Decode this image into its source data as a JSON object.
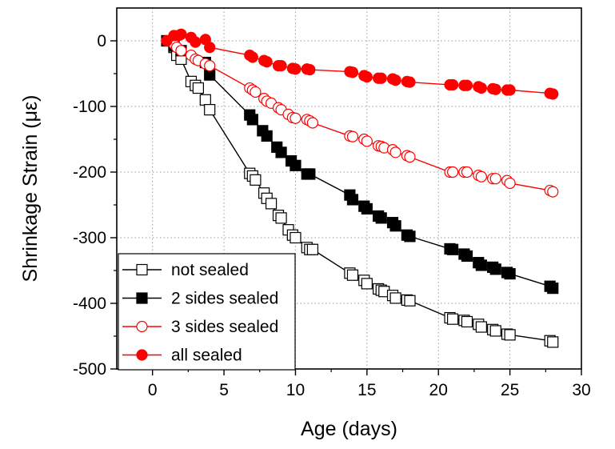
{
  "chart_data": {
    "type": "line",
    "title": "",
    "xlabel": "Age (days)",
    "ylabel": "Shrinkage Strain (με)",
    "xlim": [
      -2.5,
      30
    ],
    "ylim": [
      -500,
      50
    ],
    "xticks": [
      0,
      5,
      10,
      15,
      20,
      25,
      30
    ],
    "yticks": [
      0,
      -100,
      -200,
      -300,
      -400,
      -500
    ],
    "grid": true,
    "legend_position": "bottom-left",
    "series": [
      {
        "name": "not sealed",
        "color": "#000000",
        "marker": "square-open",
        "x": [
          1,
          1.5,
          1.7,
          2.0,
          2.7,
          3.0,
          3.2,
          3.7,
          4.0,
          6.8,
          7.0,
          7.2,
          7.8,
          8.0,
          8.3,
          8.8,
          9.0,
          9.5,
          9.8,
          10.0,
          10.8,
          11.0,
          11.2,
          13.8,
          14.0,
          14.8,
          15.0,
          15.8,
          16.0,
          16.2,
          16.8,
          17.0,
          17.8,
          18.0,
          20.8,
          21.0,
          21.8,
          22.0,
          22.8,
          23.0,
          23.8,
          24.0,
          24.8,
          25.0,
          27.8,
          28.0
        ],
        "y": [
          0,
          -10,
          -22,
          -28,
          -62,
          -68,
          -72,
          -90,
          -105,
          -202,
          -206,
          -212,
          -232,
          -240,
          -248,
          -266,
          -270,
          -288,
          -296,
          -300,
          -315,
          -318,
          -318,
          -354,
          -357,
          -365,
          -370,
          -378,
          -380,
          -382,
          -388,
          -392,
          -395,
          -396,
          -422,
          -424,
          -426,
          -428,
          -432,
          -436,
          -440,
          -442,
          -447,
          -448,
          -457,
          -459
        ]
      },
      {
        "name": "2 sides sealed",
        "color": "#000000",
        "marker": "square-filled",
        "x": [
          1,
          1.5,
          2.0,
          3.7,
          4.0,
          6.8,
          7.0,
          7.7,
          8.0,
          8.7,
          9.0,
          9.7,
          10.0,
          10.8,
          11.0,
          13.8,
          14.0,
          14.8,
          15.0,
          15.8,
          16.0,
          16.8,
          17.0,
          17.8,
          18.0,
          20.8,
          21.0,
          21.8,
          22.0,
          22.8,
          23.0,
          23.8,
          24.0,
          24.8,
          25.0,
          27.8,
          28.0
        ],
        "y": [
          0,
          -8,
          -15,
          -33,
          -52,
          -113,
          -120,
          -137,
          -145,
          -162,
          -170,
          -183,
          -190,
          -203,
          -203,
          -235,
          -242,
          -252,
          -256,
          -267,
          -270,
          -277,
          -282,
          -296,
          -298,
          -317,
          -318,
          -325,
          -328,
          -338,
          -342,
          -345,
          -348,
          -353,
          -355,
          -374,
          -377
        ]
      },
      {
        "name": "3 sides sealed",
        "color": "#ff0000",
        "marker": "circle-open",
        "x": [
          1,
          1.5,
          1.7,
          2.0,
          2.7,
          3.0,
          3.2,
          3.7,
          4.0,
          6.8,
          7.0,
          7.2,
          7.8,
          8.0,
          8.3,
          8.8,
          9.0,
          9.5,
          9.8,
          10.0,
          10.8,
          11.0,
          11.2,
          13.8,
          14.0,
          14.8,
          15.0,
          15.8,
          16.0,
          16.2,
          16.8,
          17.0,
          17.8,
          18.0,
          20.8,
          21.0,
          21.8,
          22.0,
          22.8,
          23.0,
          23.8,
          24.0,
          24.8,
          25.0,
          27.8,
          28.0
        ],
        "y": [
          0,
          -5,
          -10,
          -15,
          -22,
          -28,
          -30,
          -35,
          -38,
          -72,
          -75,
          -78,
          -88,
          -92,
          -95,
          -102,
          -105,
          -112,
          -117,
          -118,
          -120,
          -122,
          -125,
          -145,
          -146,
          -150,
          -153,
          -160,
          -161,
          -163,
          -166,
          -170,
          -175,
          -177,
          -200,
          -200,
          -200,
          -200,
          -205,
          -207,
          -210,
          -210,
          -213,
          -217,
          -228,
          -230
        ]
      },
      {
        "name": "all sealed",
        "color": "#ff0000",
        "marker": "circle-filled",
        "x": [
          1,
          1.5,
          1.8,
          2.0,
          2.7,
          3.0,
          3.7,
          4.0,
          6.8,
          7.0,
          7.8,
          8.0,
          8.8,
          9.0,
          9.8,
          10.0,
          10.8,
          11.0,
          13.8,
          14.0,
          14.8,
          15.0,
          15.8,
          16.0,
          16.8,
          17.0,
          17.8,
          18.0,
          20.8,
          21.0,
          21.8,
          22.0,
          22.8,
          23.0,
          23.8,
          24.0,
          24.8,
          25.0,
          27.8,
          28.0
        ],
        "y": [
          0,
          8,
          8,
          10,
          5,
          -2,
          2,
          -10,
          -22,
          -25,
          -30,
          -32,
          -38,
          -38,
          -42,
          -43,
          -43,
          -44,
          -47,
          -48,
          -53,
          -55,
          -57,
          -57,
          -58,
          -60,
          -62,
          -63,
          -67,
          -67,
          -68,
          -68,
          -70,
          -72,
          -73,
          -74,
          -75,
          -75,
          -80,
          -81
        ]
      }
    ]
  }
}
